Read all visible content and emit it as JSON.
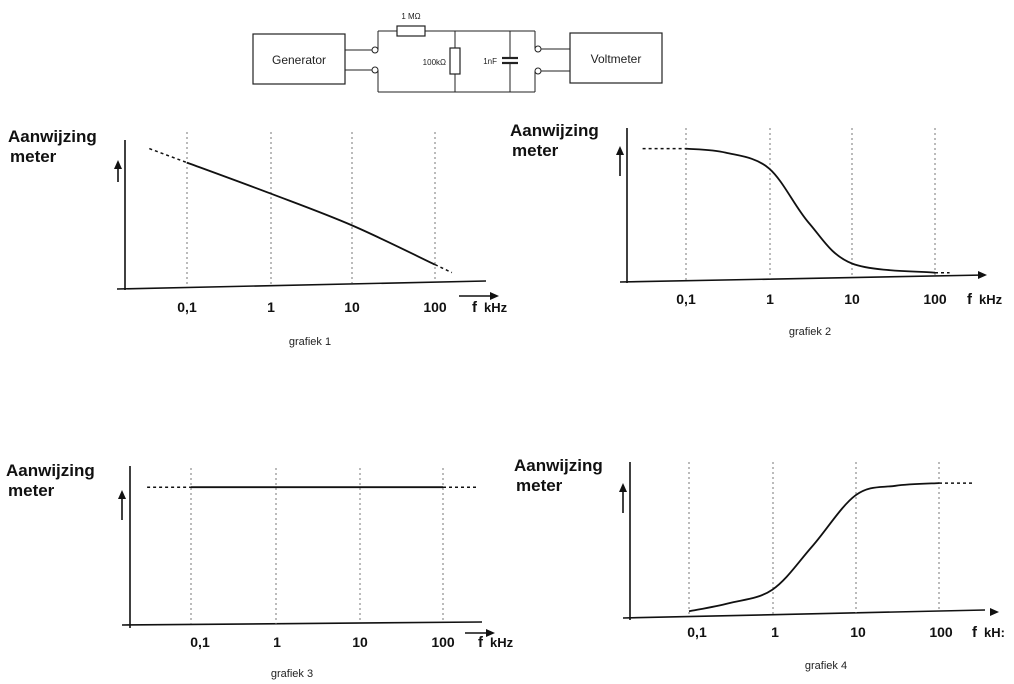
{
  "circuit": {
    "generator_label": "Generator",
    "voltmeter_label": "Voltmeter",
    "resistor_series_label": "1 MΩ",
    "resistor_shunt_label": "100kΩ",
    "capacitor_label": "1nF"
  },
  "graphs": [
    {
      "ylabel_line1": "Aanwijzing",
      "ylabel_line2": "meter",
      "xunit_f": "f",
      "xunit_k": "kHz",
      "caption": "grafiek 1"
    },
    {
      "ylabel_line1": "Aanwijzing",
      "ylabel_line2": "meter",
      "xunit_f": "f",
      "xunit_k": "kHz",
      "caption": "grafiek 2"
    },
    {
      "ylabel_line1": "Aanwijzing",
      "ylabel_line2": "meter",
      "xunit_f": "f",
      "xunit_k": "kHz",
      "caption": "grafiek 3"
    },
    {
      "ylabel_line1": "Aanwijzing",
      "ylabel_line2": "meter",
      "xunit_f": "f",
      "xunit_k": "kH:",
      "caption": "grafiek 4"
    }
  ],
  "chart_data": [
    {
      "type": "line",
      "title": "grafiek 1",
      "xlabel": "f kHz",
      "ylabel": "Aanwijzing meter",
      "xscale": "log",
      "x_ticks": [
        "0,1",
        "1",
        "10",
        "100"
      ],
      "x": [
        0.1,
        1,
        10,
        100
      ],
      "series": [
        {
          "values": [
            0.72,
            0.54,
            0.35,
            0.12
          ]
        }
      ],
      "extrapolated": "dashed at both ends",
      "grid": "vertical dotted"
    },
    {
      "type": "line",
      "title": "grafiek 2",
      "xlabel": "f kHz",
      "ylabel": "Aanwijzing meter",
      "xscale": "log",
      "x_ticks": [
        "0,1",
        "1",
        "10",
        "100"
      ],
      "x": [
        0.1,
        0.3,
        1,
        3,
        10,
        100
      ],
      "series": [
        {
          "values": [
            0.98,
            0.95,
            0.83,
            0.42,
            0.11,
            0.04
          ]
        }
      ],
      "extrapolated": "dashed at both ends",
      "grid": "vertical dotted"
    },
    {
      "type": "line",
      "title": "grafiek 3",
      "xlabel": "f kHz",
      "ylabel": "Aanwijzing meter",
      "xscale": "log",
      "x_ticks": [
        "0,1",
        "1",
        "10",
        "100"
      ],
      "x": [
        0.1,
        1,
        10,
        100
      ],
      "series": [
        {
          "values": [
            0.9,
            0.9,
            0.9,
            0.9
          ]
        }
      ],
      "extrapolated": "dashed at both ends",
      "grid": "vertical dotted"
    },
    {
      "type": "line",
      "title": "grafiek 4",
      "xlabel": "f kHz",
      "ylabel": "Aanwijzing meter",
      "xscale": "log",
      "x_ticks": [
        "0,1",
        "1",
        "10",
        "100"
      ],
      "x": [
        0.1,
        0.3,
        1,
        3,
        10,
        30,
        100
      ],
      "series": [
        {
          "values": [
            0.02,
            0.08,
            0.18,
            0.5,
            0.88,
            0.95,
            0.97
          ]
        }
      ],
      "extrapolated": "dashed at right end",
      "grid": "vertical dotted"
    }
  ]
}
